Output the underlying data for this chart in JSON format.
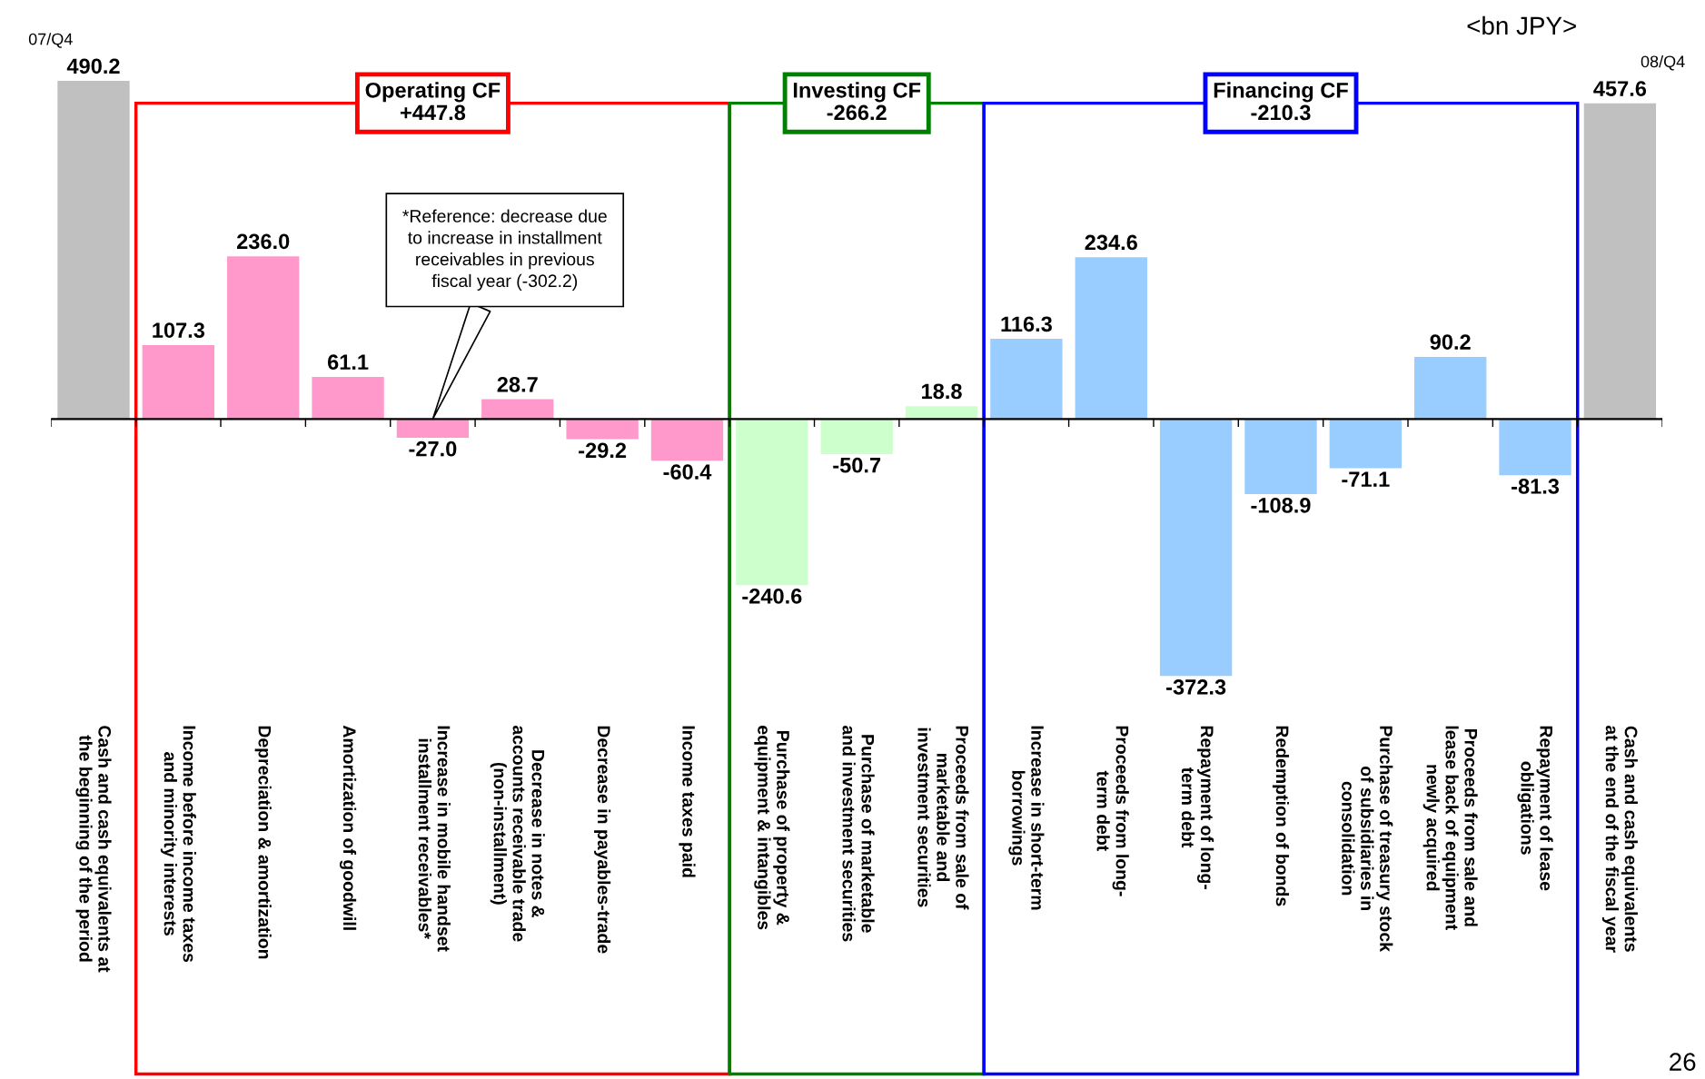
{
  "chart_data": {
    "type": "bar",
    "categories": [
      "Cash and cash equivalents at\nthe beginning of the period",
      "Income before income taxes\nand minority interests",
      "Depreciation & amortization",
      "Amortization of goodwill",
      "Increase in mobile handset\ninstallment receivables*",
      "Decrease in notes &\naccounts receivable trade\n(non-installment)",
      "Decrease in payables-trade",
      "Income taxes paid",
      "Purchase of property &\nequipment & intangibles",
      "Purchase of marketable\nand investment securities",
      "Proceeds from sale of\nmarketable and\ninvestment securities",
      "Increase in short-term\nborrowings",
      "Proceeds from long-\nterm debt",
      "Repayment of long-\nterm debt",
      "Redemption of bonds",
      "Purchase of treasury stock\nof subsidiaries in\nconsolidation",
      "Proceeds from sale and\nlease back of equipment\nnewly acquired",
      "Repayment of lease\nobligations",
      "Cash and cash equivalents\nat the end of the fiscal year"
    ],
    "values": [
      490.2,
      107.3,
      236.0,
      61.1,
      -27.0,
      28.7,
      -29.2,
      -60.4,
      -240.6,
      -50.7,
      18.8,
      116.3,
      234.6,
      -372.3,
      -108.9,
      -71.1,
      90.2,
      -81.3,
      457.6
    ],
    "colors": [
      "#c0c0c0",
      "#ff99cc",
      "#ff99cc",
      "#ff99cc",
      "#ff99cc",
      "#ff99cc",
      "#ff99cc",
      "#ff99cc",
      "#ccffcc",
      "#ccffcc",
      "#ccffcc",
      "#99ccff",
      "#99ccff",
      "#99ccff",
      "#99ccff",
      "#99ccff",
      "#99ccff",
      "#99ccff",
      "#c0c0c0"
    ],
    "value_labels": [
      "490.2",
      "107.3",
      "236.0",
      "61.1",
      "-27.0",
      "28.7",
      "-29.2",
      "-60.4",
      "-240.6",
      "-50.7",
      "18.8",
      "116.3",
      "234.6",
      "-372.3",
      "-108.9",
      "-71.1",
      "90.2",
      "-81.3",
      "457.6"
    ],
    "grid": false,
    "annotations": [
      "Operating CF\n+447.8",
      "Investing CF\n-266.2",
      "Financing CF\n-210.3",
      {
        "text": "07/Q4",
        "x": "Cash and cash equivalents at\nthe beginning of the period",
        "y": 490.2
      },
      {
        "text": "08/Q4",
        "x": "Cash and cash equivalents\nat the end of the fiscal year",
        "y": 457.6
      },
      "*Reference: decrease due\nto increase in installment\nreceivables in previous\nfiscal year (-302.2)",
      "<bn JPY>",
      "26"
    ]
  }
}
